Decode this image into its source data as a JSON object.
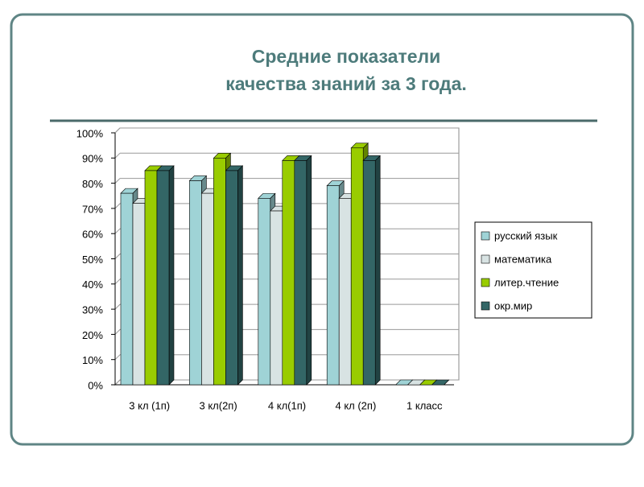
{
  "chart_data": {
    "type": "bar",
    "title": [
      "Средние показатели",
      "качества знаний за 3 года."
    ],
    "categories": [
      "3 кл (1п)",
      "3 кл(2п)",
      "4 кл(1п)",
      "4 кл (2п)",
      "1 класс"
    ],
    "series": [
      {
        "name": "русский язык",
        "color": "#9fd3d6",
        "values": [
          76,
          81,
          74,
          79,
          0
        ]
      },
      {
        "name": "математика",
        "color": "#d8e3e3",
        "values": [
          72,
          76,
          69,
          74,
          0
        ]
      },
      {
        "name": "литер.чтение",
        "color": "#99cc00",
        "values": [
          85,
          90,
          89,
          94,
          0
        ]
      },
      {
        "name": "окр.мир",
        "color": "#336666",
        "values": [
          85,
          85,
          89,
          89,
          0
        ]
      }
    ],
    "ylim": [
      0,
      100
    ],
    "yticks": [
      {
        "value": 0,
        "label": "0%"
      },
      {
        "value": 10,
        "label": "10%"
      },
      {
        "value": 20,
        "label": "20%"
      },
      {
        "value": 30,
        "label": "30%"
      },
      {
        "value": 40,
        "label": "40%"
      },
      {
        "value": 50,
        "label": "50%"
      },
      {
        "value": 60,
        "label": "60%"
      },
      {
        "value": 70,
        "label": "70%"
      },
      {
        "value": 80,
        "label": "80%"
      },
      {
        "value": 90,
        "label": "90%"
      },
      {
        "value": 100,
        "label": "100%"
      }
    ],
    "grid": true,
    "legend": "right"
  }
}
